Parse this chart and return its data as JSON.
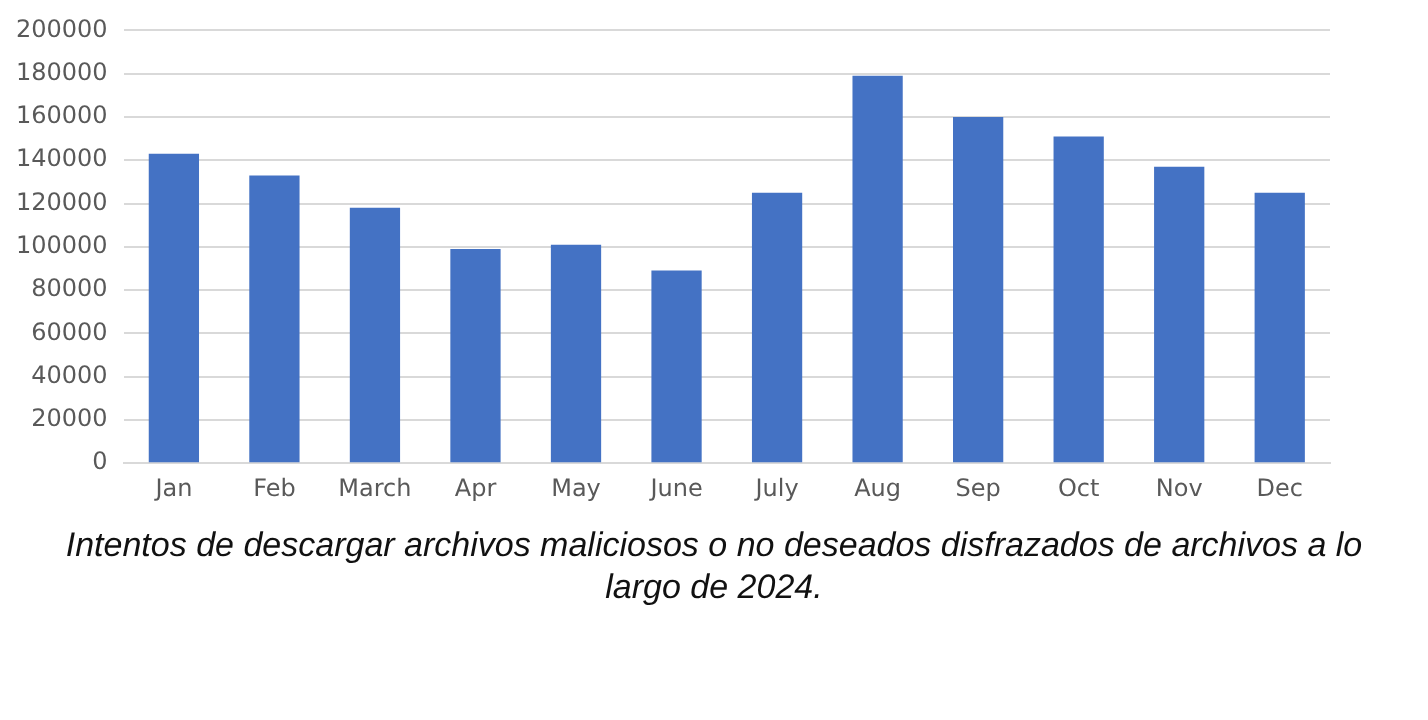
{
  "chart_data": {
    "type": "bar",
    "categories": [
      "Jan",
      "Feb",
      "March",
      "Apr",
      "May",
      "June",
      "July",
      "Aug",
      "Sep",
      "Oct",
      "Nov",
      "Dec"
    ],
    "values": [
      143000,
      133000,
      118000,
      99000,
      101000,
      89000,
      125000,
      179000,
      160000,
      151000,
      137000,
      125000
    ],
    "color": "#4472c4",
    "ylim": [
      0,
      200000
    ],
    "yticks": [
      0,
      20000,
      40000,
      60000,
      80000,
      100000,
      120000,
      140000,
      160000,
      180000,
      200000
    ],
    "grid": "y",
    "legend": false,
    "annotations": [
      "Intentos de descargar archivos maliciosos o no deseados disfrazados de archivos a lo largo de 2024."
    ]
  }
}
